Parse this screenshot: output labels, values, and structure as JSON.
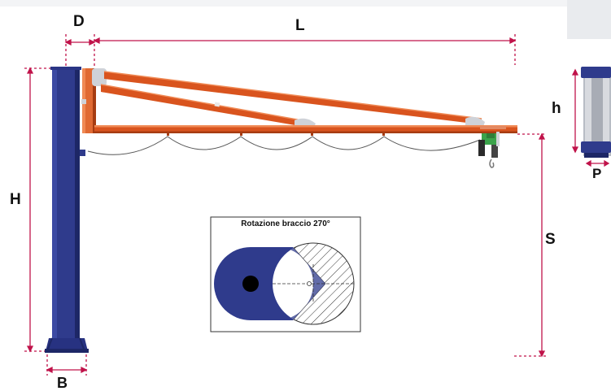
{
  "dimensions": {
    "D": "D",
    "L": "L",
    "H": "H",
    "S": "S",
    "h": "h",
    "P": "P",
    "B": "B"
  },
  "inset": {
    "title": "Rotazione braccio 270°"
  },
  "colors": {
    "column": "#2f3b8c",
    "column_dark": "#1d2766",
    "jib_arm": "#d9541e",
    "jib_arm_dark": "#a63c12",
    "dimension_line": "#c0134a",
    "hatch": "#333333",
    "hoist": "#3aa34a",
    "band": "#e9ebee"
  }
}
